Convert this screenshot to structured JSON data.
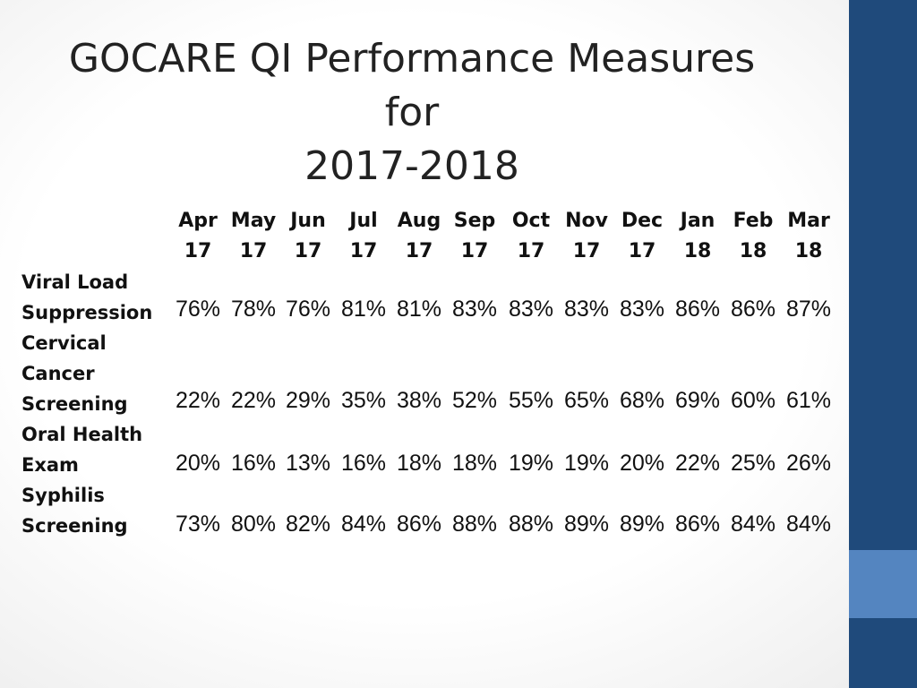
{
  "title": {
    "line1": "GOCARE QI Performance Measures for",
    "line2": "2017-2018"
  },
  "months": [
    {
      "month": "Apr",
      "year": "17"
    },
    {
      "month": "May",
      "year": "17"
    },
    {
      "month": "Jun",
      "year": "17"
    },
    {
      "month": "Jul",
      "year": "17"
    },
    {
      "month": "Aug",
      "year": "17"
    },
    {
      "month": "Sep",
      "year": "17"
    },
    {
      "month": "Oct",
      "year": "17"
    },
    {
      "month": "Nov",
      "year": "17"
    },
    {
      "month": "Dec",
      "year": "17"
    },
    {
      "month": "Jan",
      "year": "18"
    },
    {
      "month": "Feb",
      "year": "18"
    },
    {
      "month": "Mar",
      "year": "18"
    }
  ],
  "measures": [
    {
      "label_lines": [
        "Viral Load",
        "Suppression"
      ],
      "values": [
        "76%",
        "78%",
        "76%",
        "81%",
        "81%",
        "83%",
        "83%",
        "83%",
        "83%",
        "86%",
        "86%",
        "87%"
      ]
    },
    {
      "label_lines": [
        "Cervical",
        "Cancer",
        "Screening"
      ],
      "values": [
        "22%",
        "22%",
        "29%",
        "35%",
        "38%",
        "52%",
        "55%",
        "65%",
        "68%",
        "69%",
        "60%",
        "61%"
      ]
    },
    {
      "label_lines": [
        "Oral Health",
        "Exam"
      ],
      "values": [
        "20%",
        "16%",
        "13%",
        "16%",
        "18%",
        "18%",
        "19%",
        "19%",
        "20%",
        "22%",
        "25%",
        "26%"
      ]
    },
    {
      "label_lines": [
        "Syphilis",
        "Screening"
      ],
      "values": [
        "73%",
        "80%",
        "82%",
        "84%",
        "86%",
        "88%",
        "88%",
        "89%",
        "89%",
        "86%",
        "84%",
        "84%"
      ]
    }
  ]
}
